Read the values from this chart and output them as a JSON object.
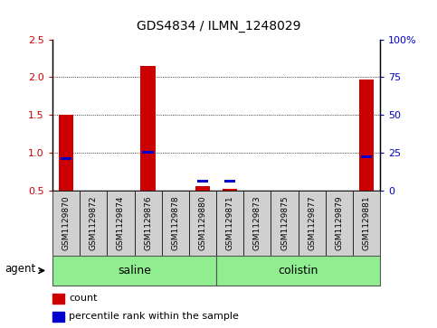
{
  "title": "GDS4834 / ILMN_1248029",
  "samples": [
    "GSM1129870",
    "GSM1129872",
    "GSM1129874",
    "GSM1129876",
    "GSM1129878",
    "GSM1129880",
    "GSM1129871",
    "GSM1129873",
    "GSM1129875",
    "GSM1129877",
    "GSM1129879",
    "GSM1129881"
  ],
  "counts": [
    1.5,
    0.5,
    0.5,
    2.15,
    0.5,
    0.55,
    0.52,
    0.5,
    0.5,
    0.5,
    0.5,
    1.97
  ],
  "percentile_ranks": [
    21,
    null,
    null,
    25,
    null,
    6,
    6,
    null,
    null,
    null,
    null,
    22
  ],
  "groups": [
    "saline",
    "saline",
    "saline",
    "saline",
    "saline",
    "saline",
    "colistin",
    "colistin",
    "colistin",
    "colistin",
    "colistin",
    "colistin"
  ],
  "bar_color": "#cc0000",
  "percentile_color": "#0000cc",
  "ylim": [
    0.5,
    2.5
  ],
  "y_ticks": [
    0.5,
    1.0,
    1.5,
    2.0,
    2.5
  ],
  "right_ylim": [
    0,
    100
  ],
  "right_yticks": [
    0,
    25,
    50,
    75,
    100
  ],
  "right_yticklabels": [
    "0",
    "25",
    "50",
    "75",
    "100%"
  ],
  "bar_width": 0.55,
  "legend_count_label": "count",
  "legend_percentile_label": "percentile rank within the sample",
  "agent_label": "agent",
  "saline_label": "saline",
  "colistin_label": "colistin",
  "group_color": "#90EE90",
  "sample_box_color": "#d0d0d0",
  "gridlines": [
    1.0,
    1.5,
    2.0
  ]
}
